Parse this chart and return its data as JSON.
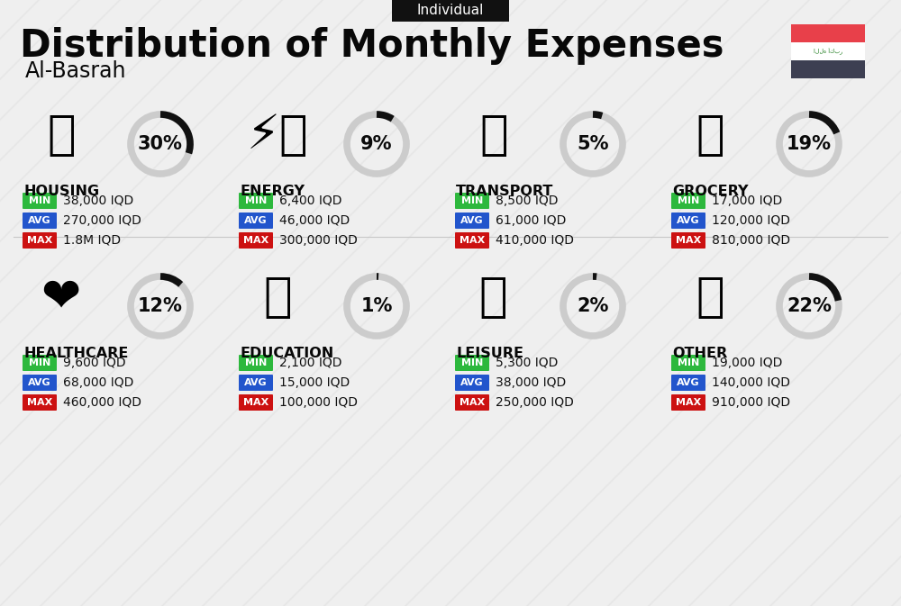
{
  "title": "Distribution of Monthly Expenses",
  "subtitle": "Individual",
  "city": "Al-Basrah",
  "background_color": "#efefef",
  "categories": [
    {
      "name": "HOUSING",
      "pct": 30,
      "min": "38,000 IQD",
      "avg": "270,000 IQD",
      "max": "1.8M IQD",
      "row": 0,
      "col": 0
    },
    {
      "name": "ENERGY",
      "pct": 9,
      "min": "6,400 IQD",
      "avg": "46,000 IQD",
      "max": "300,000 IQD",
      "row": 0,
      "col": 1
    },
    {
      "name": "TRANSPORT",
      "pct": 5,
      "min": "8,500 IQD",
      "avg": "61,000 IQD",
      "max": "410,000 IQD",
      "row": 0,
      "col": 2
    },
    {
      "name": "GROCERY",
      "pct": 19,
      "min": "17,000 IQD",
      "avg": "120,000 IQD",
      "max": "810,000 IQD",
      "row": 0,
      "col": 3
    },
    {
      "name": "HEALTHCARE",
      "pct": 12,
      "min": "9,600 IQD",
      "avg": "68,000 IQD",
      "max": "460,000 IQD",
      "row": 1,
      "col": 0
    },
    {
      "name": "EDUCATION",
      "pct": 1,
      "min": "2,100 IQD",
      "avg": "15,000 IQD",
      "max": "100,000 IQD",
      "row": 1,
      "col": 1
    },
    {
      "name": "LEISURE",
      "pct": 2,
      "min": "5,300 IQD",
      "avg": "38,000 IQD",
      "max": "250,000 IQD",
      "row": 1,
      "col": 2
    },
    {
      "name": "OTHER",
      "pct": 22,
      "min": "19,000 IQD",
      "avg": "140,000 IQD",
      "max": "910,000 IQD",
      "row": 1,
      "col": 3
    }
  ],
  "color_min": "#2db83d",
  "color_avg": "#2255cc",
  "color_max": "#cc1111",
  "donut_active": "#111111",
  "donut_inactive": "#cccccc",
  "stripe_color": "#e0e0e0",
  "title_fontsize": 30,
  "subtitle_fontsize": 11,
  "city_fontsize": 17,
  "cat_fontsize": 11.5,
  "pct_fontsize": 15,
  "val_fontsize": 10,
  "badge_fontsize": 8,
  "flag_red": "#e8404a",
  "flag_white": "#ffffff",
  "flag_dark": "#3d3f52",
  "ind_box_color": "#111111"
}
